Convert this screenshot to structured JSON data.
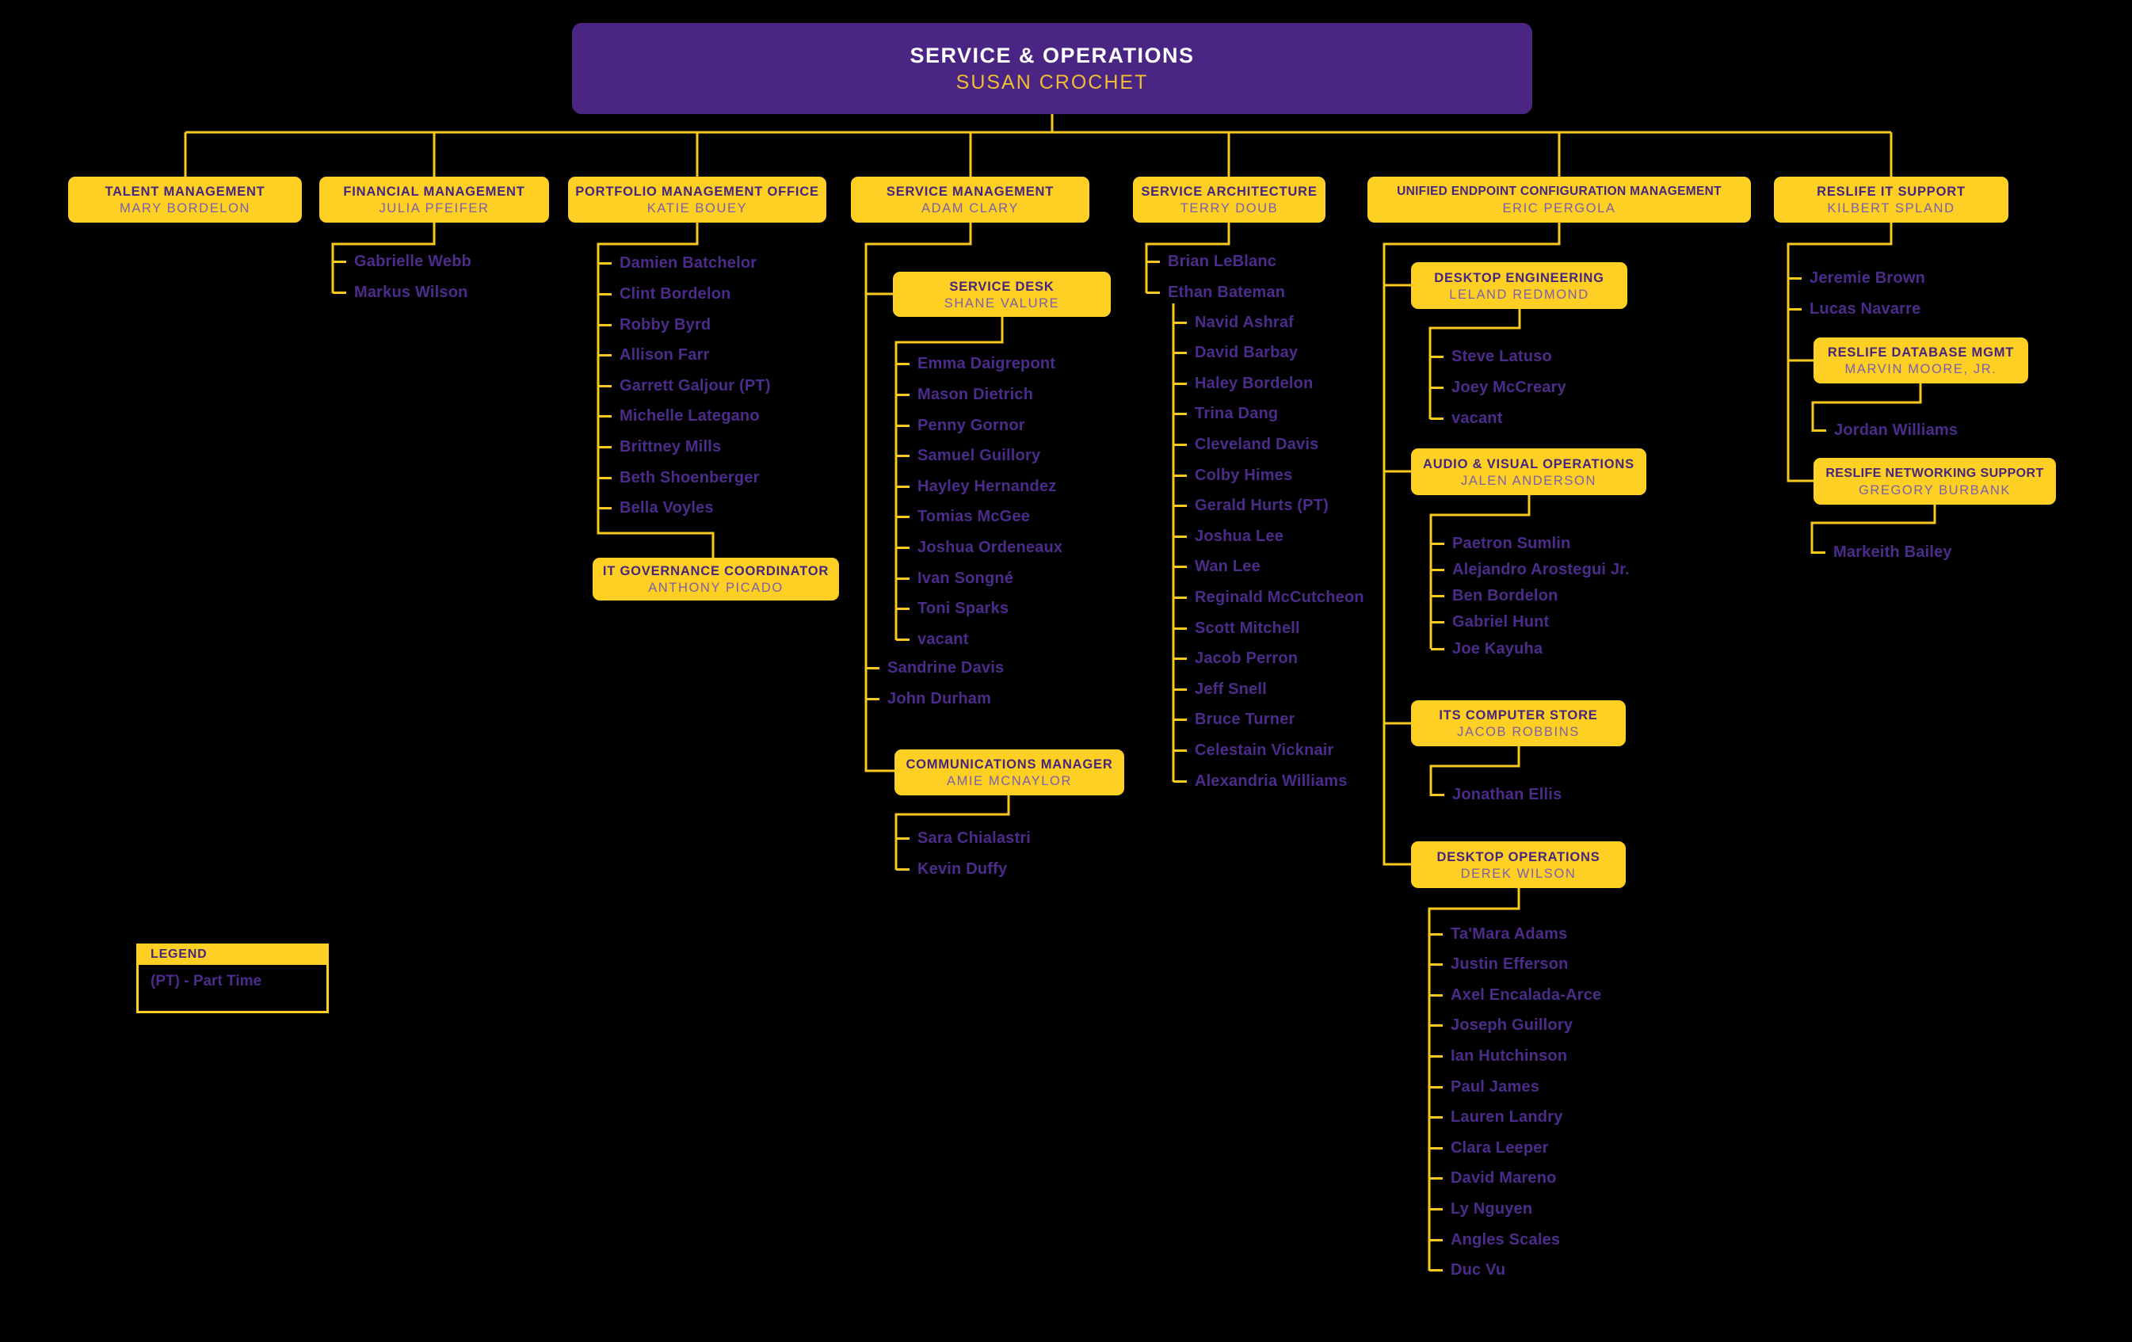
{
  "root": {
    "dept": "SERVICE & OPERATIONS",
    "person": "SUSAN CROCHET"
  },
  "branches": {
    "talent": {
      "dept": "TALENT MANAGEMENT",
      "person": "MARY BORDELON"
    },
    "financial": {
      "dept": "FINANCIAL MANAGEMENT",
      "person": "JULIA PFEIFER",
      "members": [
        "Gabrielle Webb",
        "Markus Wilson"
      ]
    },
    "portfolio": {
      "dept": "PORTFOLIO MANAGEMENT OFFICE",
      "person": "KATIE BOUEY",
      "members": [
        "Damien Batchelor",
        "Clint Bordelon",
        "Robby Byrd",
        "Allison Farr",
        "Garrett Galjour (PT)",
        "Michelle Lategano",
        "Brittney Mills",
        "Beth Shoenberger",
        "Bella Voyles"
      ],
      "it_governance": {
        "dept": "IT GOVERNANCE COORDINATOR",
        "person": "ANTHONY PICADO"
      }
    },
    "service_management": {
      "dept": "SERVICE MANAGEMENT",
      "person": "ADAM CLARY",
      "service_desk": {
        "dept": "SERVICE DESK",
        "person": "SHANE VALURE",
        "members": [
          "Emma Daigrepont",
          "Mason Dietrich",
          "Penny Gornor",
          "Samuel Guillory",
          "Hayley Hernandez",
          "Tomias McGee",
          "Joshua Ordeneaux",
          "Ivan Songné",
          "Toni Sparks",
          "vacant"
        ]
      },
      "members": [
        "Sandrine Davis",
        "John Durham"
      ],
      "communications_manager": {
        "dept": "COMMUNICATIONS MANAGER",
        "person": "AMIE MCNAYLOR",
        "members": [
          "Sara Chialastri",
          "Kevin Duffy"
        ]
      }
    },
    "service_architecture": {
      "dept": "SERVICE ARCHITECTURE",
      "person": "TERRY DOUB",
      "members": [
        "Brian LeBlanc",
        "Ethan Bateman"
      ],
      "ethan_bateman_team": [
        "Navid Ashraf",
        "David Barbay",
        "Haley Bordelon",
        "Trina Dang",
        "Cleveland Davis",
        "Colby Himes",
        "Gerald Hurts (PT)",
        "Joshua Lee",
        "Wan Lee",
        "Reginald McCutcheon",
        "Scott Mitchell",
        "Jacob Perron",
        "Jeff Snell",
        "Bruce Turner",
        "Celestain Vicknair",
        "Alexandria Williams"
      ]
    },
    "uecm": {
      "dept": "UNIFIED ENDPOINT CONFIGURATION MANAGEMENT",
      "person": "ERIC PERGOLA",
      "desktop_engineering": {
        "dept": "DESKTOP ENGINEERING",
        "person": "LELAND REDMOND",
        "members": [
          "Steve Latuso",
          "Joey McCreary",
          "vacant"
        ]
      },
      "audio_visual_operations": {
        "dept": "AUDIO & VISUAL OPERATIONS",
        "person": "JALEN ANDERSON",
        "members": [
          "Paetron Sumlin",
          "Alejandro Arostegui Jr.",
          "Ben Bordelon",
          "Gabriel Hunt",
          "Joe Kayuha"
        ]
      },
      "its_computer_store": {
        "dept": "ITS COMPUTER STORE",
        "person": "JACOB ROBBINS",
        "members": [
          "Jonathan Ellis"
        ]
      },
      "desktop_operations": {
        "dept": "DESKTOP OPERATIONS",
        "person": "DEREK WILSON",
        "members": [
          "Ta'Mara Adams",
          "Justin Efferson",
          "Axel Encalada-Arce",
          "Joseph Guillory",
          "Ian Hutchinson",
          "Paul James",
          "Lauren Landry",
          "Clara Leeper",
          "David Mareno",
          "Ly Nguyen",
          "Angles Scales",
          "Duc Vu"
        ]
      }
    },
    "reslife": {
      "dept": "RESLIFE IT SUPPORT",
      "person": "KILBERT SPLAND",
      "members": [
        "Jeremie Brown",
        "Lucas Navarre"
      ],
      "database_mgmt": {
        "dept": "RESLIFE DATABASE MGMT",
        "person": "MARVIN MOORE, JR.",
        "members": [
          "Jordan Williams"
        ]
      },
      "networking_support": {
        "dept": "RESLIFE NETWORKING SUPPORT",
        "person": "GREGORY BURBANK",
        "members": [
          "Markeith Bailey"
        ]
      }
    }
  },
  "legend": {
    "title": "LEGEND",
    "entries": [
      "(PT) - Part Time"
    ]
  },
  "colors": {
    "background": "#000000",
    "gold": "#FDD023",
    "connector_gold": "#F7C81E",
    "root_purple": "#4A2583",
    "dept_title_purple": "#46267C",
    "person_purple": "#7C5FA9",
    "member_purple": "#4B2C8B",
    "root_title_white": "#FFFFFF",
    "root_person_gold": "#F0BE33"
  }
}
